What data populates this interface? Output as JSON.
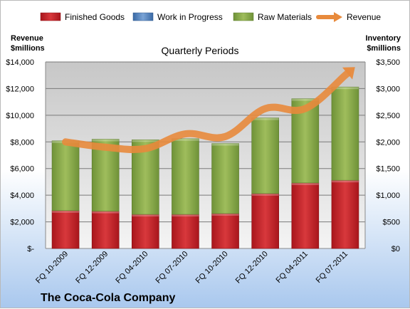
{
  "chart_data": {
    "type": "bar",
    "subtitle": "Quarterly Periods",
    "company": "The Coca-Cola Company",
    "categories": [
      "FQ 10-2009",
      "FQ 12-2009",
      "FQ 04-2010",
      "FQ 07-2010",
      "FQ 10-2010",
      "FQ 12-2010",
      "FQ 04-2011",
      "FQ 07-2011"
    ],
    "stacked": true,
    "left_axis": {
      "label_line1": "Revenue",
      "label_line2": "$millions",
      "range": [
        0,
        14000
      ],
      "ticks": [
        0,
        2000,
        4000,
        6000,
        8000,
        10000,
        12000,
        14000
      ],
      "tick_labels": [
        "$-",
        "$2,000",
        "$4,000",
        "$6,000",
        "$8,000",
        "$10,000",
        "$12,000",
        "$14,000"
      ]
    },
    "right_axis": {
      "label_line1": "Inventory",
      "label_line2": "$millions",
      "range": [
        0,
        3500
      ],
      "ticks": [
        0,
        500,
        1000,
        1500,
        2000,
        2500,
        3000,
        3500
      ],
      "tick_labels": [
        "$0",
        "$500",
        "$1,000",
        "$1,500",
        "$2,000",
        "$2,500",
        "$3,000",
        "$3,500"
      ]
    },
    "grid": true,
    "legend_position": "top",
    "series": [
      {
        "name": "Finished Goods",
        "kind": "bar",
        "axis": "right",
        "color": "#c0282c",
        "values": [
          710,
          700,
          640,
          640,
          655,
          1030,
          1230,
          1280
        ]
      },
      {
        "name": "Work in Progress",
        "kind": "bar",
        "axis": "right",
        "color": "#4f81bd",
        "values": [
          0,
          0,
          0,
          0,
          0,
          0,
          0,
          0
        ]
      },
      {
        "name": "Raw Materials",
        "kind": "bar",
        "axis": "right",
        "color": "#8aab48",
        "values": [
          1310,
          1350,
          1400,
          1420,
          1315,
          1420,
          1580,
          1750
        ]
      },
      {
        "name": "Revenue",
        "kind": "line",
        "axis": "left",
        "color": "#e88a3c",
        "values": [
          8000,
          7600,
          7500,
          8600,
          8400,
          10500,
          10500,
          13000
        ]
      }
    ]
  }
}
